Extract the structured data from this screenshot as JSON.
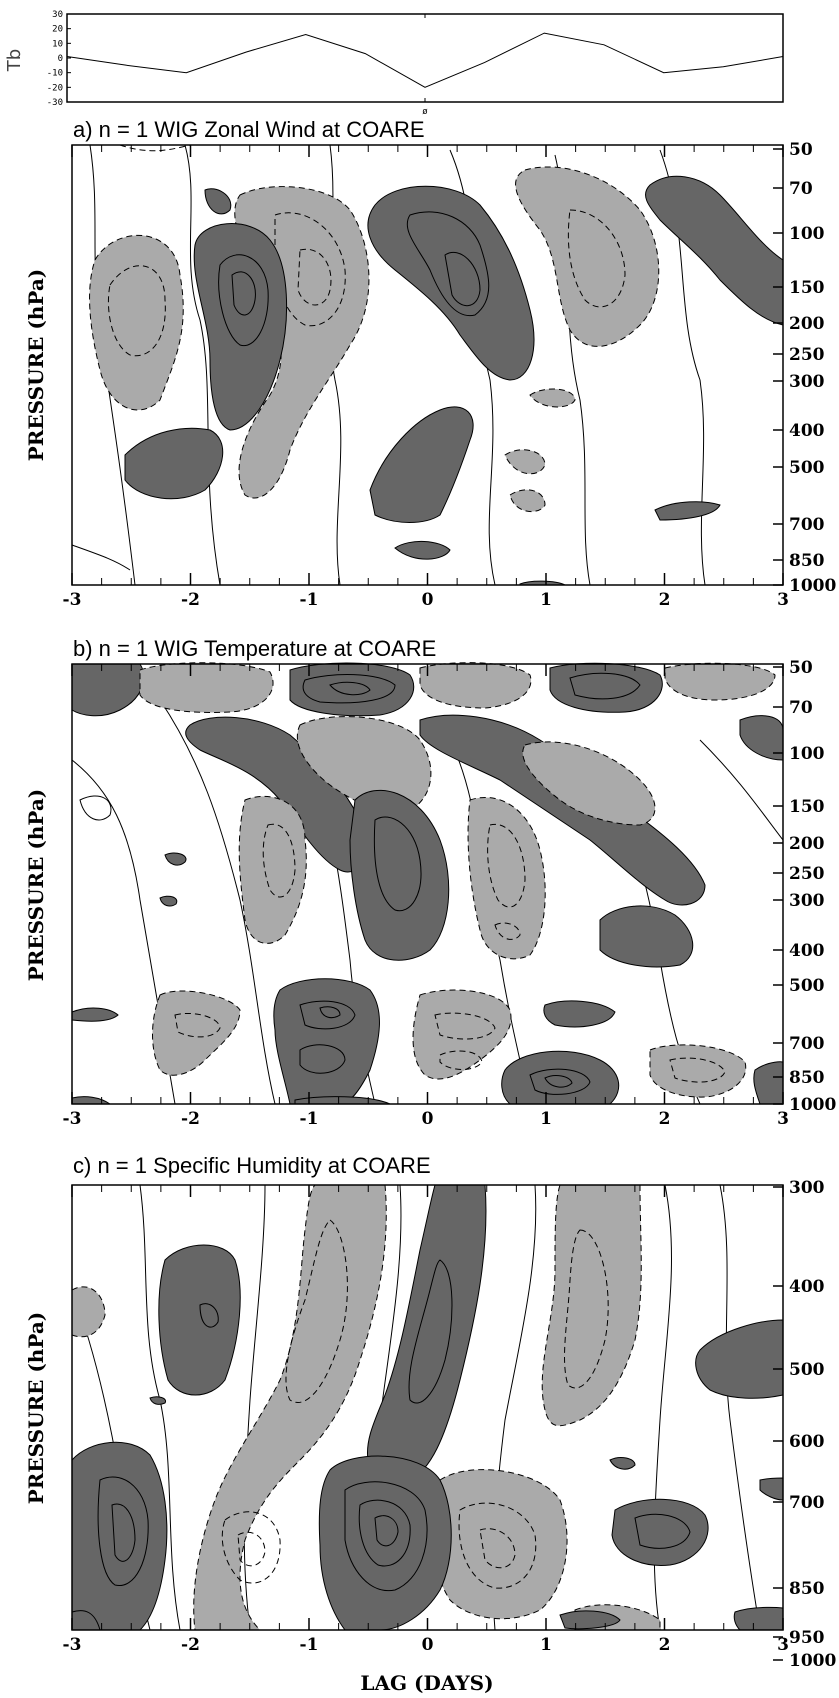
{
  "chart_data": [
    {
      "type": "line",
      "ylabel": "Tb",
      "ylim": [
        -30,
        30
      ],
      "yticks": [
        "30",
        "20",
        "10",
        "0",
        "-10",
        "-20",
        "-30"
      ],
      "center_tick": "ø",
      "series": [
        {
          "x": [
            -3,
            -2.5,
            -2.0,
            -1.5,
            -1.0,
            -0.5,
            0,
            0.5,
            1.0,
            1.5,
            2.0,
            2.5,
            3.0
          ],
          "y": [
            1,
            -5,
            -10,
            4,
            16,
            3,
            -20,
            -3,
            17,
            9,
            -10,
            -6,
            1
          ]
        }
      ]
    },
    {
      "type": "heatmap",
      "title": "a) n = 1 WIG Zonal Wind at COARE",
      "ylabel": "PRESSURE (hPa)",
      "xlim": [
        -3,
        3
      ],
      "xticks": [
        "-3",
        "-2",
        "-1",
        "0",
        "1",
        "2",
        "3"
      ],
      "yticks": [
        "50",
        "70",
        "100",
        "150",
        "200",
        "250",
        "300",
        "400",
        "500",
        "700",
        "850",
        "1000"
      ],
      "dark_regions": [
        {
          "lag": -2.4,
          "pressure": 520
        },
        {
          "lag": -1.45,
          "pressure": 155
        },
        {
          "lag": 0.55,
          "pressure": 150
        },
        {
          "lag": 2.7,
          "pressure": 110
        }
      ],
      "light_regions": [
        {
          "lag": -2.5,
          "pressure": 180
        },
        {
          "lag": -0.4,
          "pressure": 150
        },
        {
          "lag": -1.0,
          "pressure": 500
        },
        {
          "lag": 1.6,
          "pressure": 150
        }
      ]
    },
    {
      "type": "heatmap",
      "title": "b) n = 1 WIG Temperature at COARE",
      "ylabel": "PRESSURE (hPa)",
      "xlim": [
        -3,
        3
      ],
      "xticks": [
        "-3",
        "-2",
        "-1",
        "0",
        "1",
        "2",
        "3"
      ],
      "yticks": [
        "50",
        "70",
        "100",
        "150",
        "200",
        "250",
        "300",
        "400",
        "500",
        "700",
        "850",
        "1000"
      ],
      "dark_regions": [
        {
          "lag": -0.7,
          "pressure": 62
        },
        {
          "lag": 1.45,
          "pressure": 62
        },
        {
          "lag": -0.2,
          "pressure": 230
        },
        {
          "lag": -0.8,
          "pressure": 580
        },
        {
          "lag": 1.0,
          "pressure": 800
        }
      ],
      "light_regions": [
        {
          "lag": -1.5,
          "pressure": 62
        },
        {
          "lag": 0.5,
          "pressure": 62
        },
        {
          "lag": -1.25,
          "pressure": 250
        },
        {
          "lag": 0.8,
          "pressure": 250
        },
        {
          "lag": 0.2,
          "pressure": 740
        }
      ]
    },
    {
      "type": "heatmap",
      "title": "c) n = 1 Specific Humidity at COARE",
      "ylabel": "PRESSURE (hPa)",
      "xlabel": "LAG (DAYS)",
      "xlim": [
        -3,
        3
      ],
      "xticks": [
        "-3",
        "-2",
        "-1",
        "0",
        "1",
        "2",
        "3"
      ],
      "yticks": [
        "300",
        "400",
        "500",
        "600",
        "700",
        "850",
        "950",
        "1000"
      ],
      "dark_regions": [
        {
          "lag": -1.9,
          "pressure": 420
        },
        {
          "lag": 0.1,
          "pressure": 450
        },
        {
          "lag": -2.4,
          "pressure": 760
        },
        {
          "lag": -0.3,
          "pressure": 760
        },
        {
          "lag": 1.95,
          "pressure": 750
        }
      ],
      "light_regions": [
        {
          "lag": -0.9,
          "pressure": 450
        },
        {
          "lag": 1.3,
          "pressure": 450
        },
        {
          "lag": -1.45,
          "pressure": 780
        },
        {
          "lag": 0.75,
          "pressure": 760
        }
      ]
    }
  ]
}
